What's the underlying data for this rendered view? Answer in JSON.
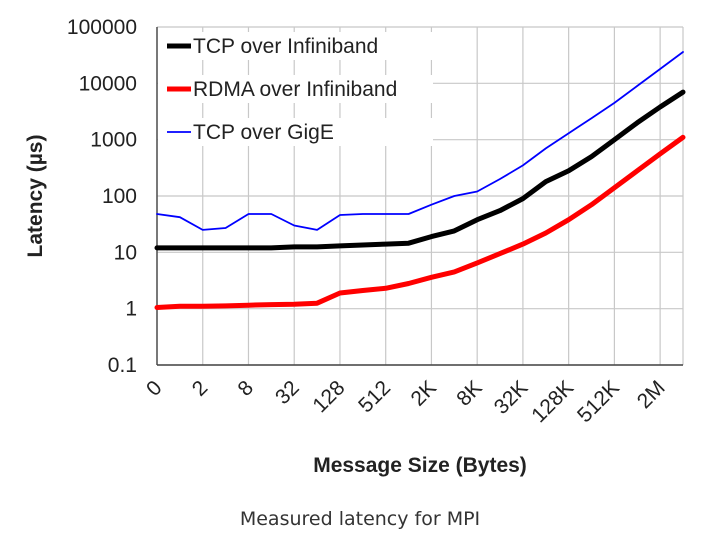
{
  "chart_data": {
    "type": "line",
    "title": "",
    "xlabel": "Message Size (Bytes)",
    "ylabel": "Latency (µs)",
    "yscale": "log",
    "ylim": [
      0.1,
      100000
    ],
    "yticks": [
      "100000",
      "10000",
      "1000",
      "100",
      "10",
      "1",
      "0.1"
    ],
    "categories": [
      "0",
      "1",
      "2",
      "4",
      "8",
      "16",
      "32",
      "64",
      "128",
      "256",
      "512",
      "1K",
      "2K",
      "4K",
      "8K",
      "16K",
      "32K",
      "64K",
      "128K",
      "256K",
      "512K",
      "1M",
      "2M",
      "4M"
    ],
    "xtick_labels": [
      "0",
      "2",
      "8",
      "32",
      "128",
      "512",
      "2K",
      "8K",
      "32K",
      "128K",
      "512K",
      "2M"
    ],
    "grid": true,
    "legend_position": "top-left",
    "series": [
      {
        "name": "TCP over Infiniband",
        "color": "#000000",
        "values": [
          12,
          12,
          12,
          12,
          12,
          12,
          12.5,
          12.5,
          13,
          13.5,
          14,
          14.5,
          19,
          24,
          38,
          55,
          90,
          180,
          280,
          500,
          1000,
          2000,
          3800,
          7000
        ]
      },
      {
        "name": "RDMA over Infiniband",
        "color": "#ff0000",
        "values": [
          1.05,
          1.1,
          1.1,
          1.12,
          1.15,
          1.18,
          1.2,
          1.25,
          1.9,
          2.1,
          2.3,
          2.8,
          3.6,
          4.5,
          6.5,
          9.5,
          14,
          22,
          38,
          70,
          140,
          280,
          560,
          1100
        ]
      },
      {
        "name": "TCP over GigE",
        "color": "#0000ff",
        "values": [
          48,
          42,
          25,
          27,
          48,
          48,
          30,
          25,
          46,
          48,
          48,
          48,
          70,
          100,
          120,
          200,
          350,
          700,
          1300,
          2400,
          4500,
          9000,
          18000,
          36000
        ]
      }
    ]
  },
  "caption": "Measured latency for MPI"
}
